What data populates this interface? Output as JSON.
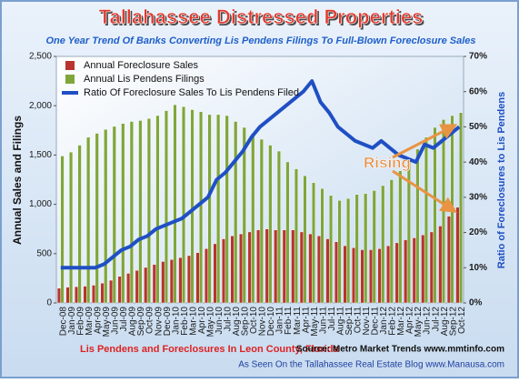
{
  "chart_data": {
    "type": "bar",
    "title": "Tallahassee  Distressed Properties",
    "subtitle": "One Year Trend Of Banks Converting Lis Pendens  Filings To Full-Blown Foreclosure Sales",
    "y_label": "Annual Sales and Filings",
    "y2_label": "Ratio of Foreclosures to Lis Pendens",
    "annotation": "Rising",
    "footer_left": "Lis Pendens and Foreclosures In Leon County, Florida",
    "source": "Source: Metro Market Trends  www.mmtinfo.com",
    "footer_right": "As Seen On the Tallahassee Real Estate Blog  www.Manausa.com",
    "categories": [
      "Dec-08",
      "Jan-09",
      "Feb-09",
      "Mar-09",
      "Apr-09",
      "May-09",
      "Jun-09",
      "Jul-09",
      "Aug-09",
      "Sep-09",
      "Oct-09",
      "Nov-09",
      "Dec-09",
      "Jan-10",
      "Feb-10",
      "Mar-10",
      "Apr-10",
      "May-10",
      "Jun-10",
      "Jul-10",
      "Aug-10",
      "Sep-10",
      "Oct-10",
      "Nov-10",
      "Dec-10",
      "Jan-11",
      "Feb-11",
      "Mar-11",
      "Apr-11",
      "May-11",
      "Jun-11",
      "Jul-11",
      "Aug-11",
      "Sep-11",
      "Oct-11",
      "Nov-11",
      "Dec-11",
      "Jan-12",
      "Feb-12",
      "Mar-12",
      "Apr-12",
      "May-12",
      "Jun-12",
      "Jul-12",
      "Aug-12",
      "Sep-12",
      "Oct-12"
    ],
    "series": [
      {
        "name": "Annual Foreclosure Sales",
        "color": "#b8342e",
        "values": [
          150,
          160,
          165,
          170,
          180,
          200,
          230,
          270,
          300,
          330,
          360,
          390,
          420,
          440,
          460,
          480,
          510,
          550,
          600,
          650,
          680,
          700,
          720,
          740,
          750,
          740,
          740,
          740,
          720,
          700,
          680,
          650,
          620,
          580,
          560,
          540,
          540,
          550,
          580,
          610,
          640,
          660,
          690,
          720,
          780,
          880,
          970
        ]
      },
      {
        "name": "Annual Lis Pendens Filings",
        "color": "#7fa63a",
        "values": [
          1490,
          1530,
          1600,
          1680,
          1720,
          1760,
          1790,
          1820,
          1840,
          1850,
          1870,
          1900,
          1950,
          2010,
          1990,
          1960,
          1940,
          1910,
          1910,
          1900,
          1840,
          1780,
          1720,
          1660,
          1600,
          1540,
          1430,
          1360,
          1290,
          1220,
          1160,
          1090,
          1040,
          1060,
          1100,
          1110,
          1140,
          1190,
          1250,
          1340,
          1460,
          1560,
          1680,
          1780,
          1860,
          1900,
          1930
        ]
      },
      {
        "name": "Ratio Of Foreclosure Sales To Lis Pendens Filed",
        "color": "#1f4fc4",
        "type": "line",
        "axis": "y2",
        "values": [
          10,
          10,
          10,
          10,
          10,
          11,
          13,
          15,
          16,
          18,
          19,
          21,
          22,
          23,
          24,
          26,
          28,
          30,
          35,
          37,
          40,
          43,
          47,
          50,
          52,
          54,
          56,
          58,
          60,
          63,
          57,
          54,
          50,
          48,
          46,
          45,
          44,
          46,
          44,
          42,
          41,
          40,
          45,
          44,
          46,
          48,
          50
        ]
      }
    ],
    "ylim": [
      0,
      2500
    ],
    "yticks": [
      0,
      500,
      {
        "value": 1000,
        "label": "1,000"
      },
      {
        "value": 1500,
        "label": "1,500"
      },
      {
        "value": 2000,
        "label": "2,000"
      },
      {
        "value": 2500,
        "label": "2,500"
      }
    ],
    "y2lim": [
      0,
      70
    ],
    "y2ticks": [
      {
        "value": 0,
        "label": "0%"
      },
      {
        "value": 10,
        "label": "10%"
      },
      {
        "value": 20,
        "label": "20%"
      },
      {
        "value": 30,
        "label": "30%"
      },
      {
        "value": 40,
        "label": "40%"
      },
      {
        "value": 50,
        "label": "50%"
      },
      {
        "value": 60,
        "label": "60%"
      },
      {
        "value": 70,
        "label": "70%"
      }
    ],
    "legend": "top-left"
  }
}
